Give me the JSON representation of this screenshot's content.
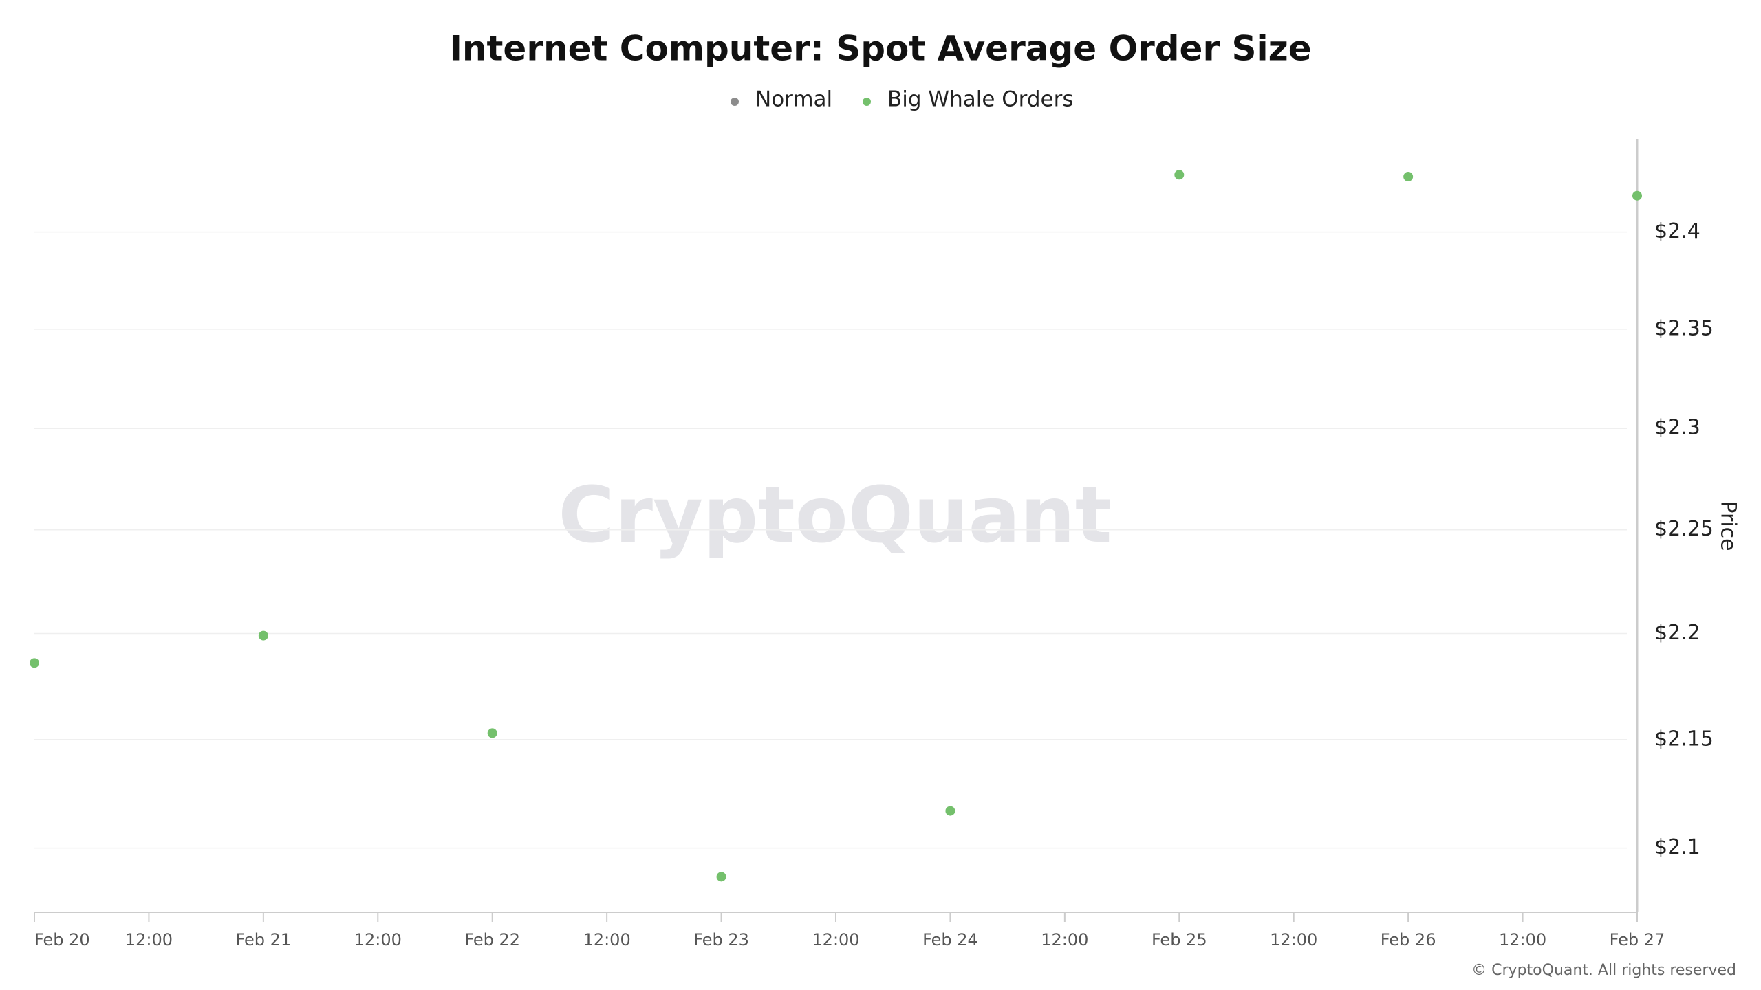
{
  "chart_data": {
    "type": "scatter",
    "title": "Internet Computer: Spot Average Order Size",
    "categories": [
      "Feb 20",
      "Feb 21",
      "Feb 22",
      "Feb 23",
      "Feb 24",
      "Feb 25",
      "Feb 26",
      "Feb 27"
    ],
    "mid_tick_label": "12:00",
    "series": [
      {
        "name": "Normal",
        "color": "#8c8c8c",
        "values": [
          null,
          null,
          null,
          null,
          null,
          null,
          null,
          null
        ]
      },
      {
        "name": "Big Whale Orders",
        "color": "#74c06c",
        "values": [
          2.186,
          2.199,
          2.153,
          2.087,
          2.117,
          2.43,
          2.429,
          2.419
        ]
      }
    ],
    "y_label": "Price",
    "ylim": [
      2.071,
      2.449
    ],
    "log_scale": true,
    "grid": true,
    "yticks": [
      {
        "value": 2.1,
        "label": "$2.1"
      },
      {
        "value": 2.15,
        "label": "$2.15"
      },
      {
        "value": 2.2,
        "label": "$2.2"
      },
      {
        "value": 2.25,
        "label": "$2.25"
      },
      {
        "value": 2.3,
        "label": "$2.3"
      },
      {
        "value": 2.35,
        "label": "$2.35"
      },
      {
        "value": 2.4,
        "label": "$2.4"
      }
    ],
    "watermark": "CryptoQuant",
    "footer": "© CryptoQuant. All rights reserved"
  }
}
